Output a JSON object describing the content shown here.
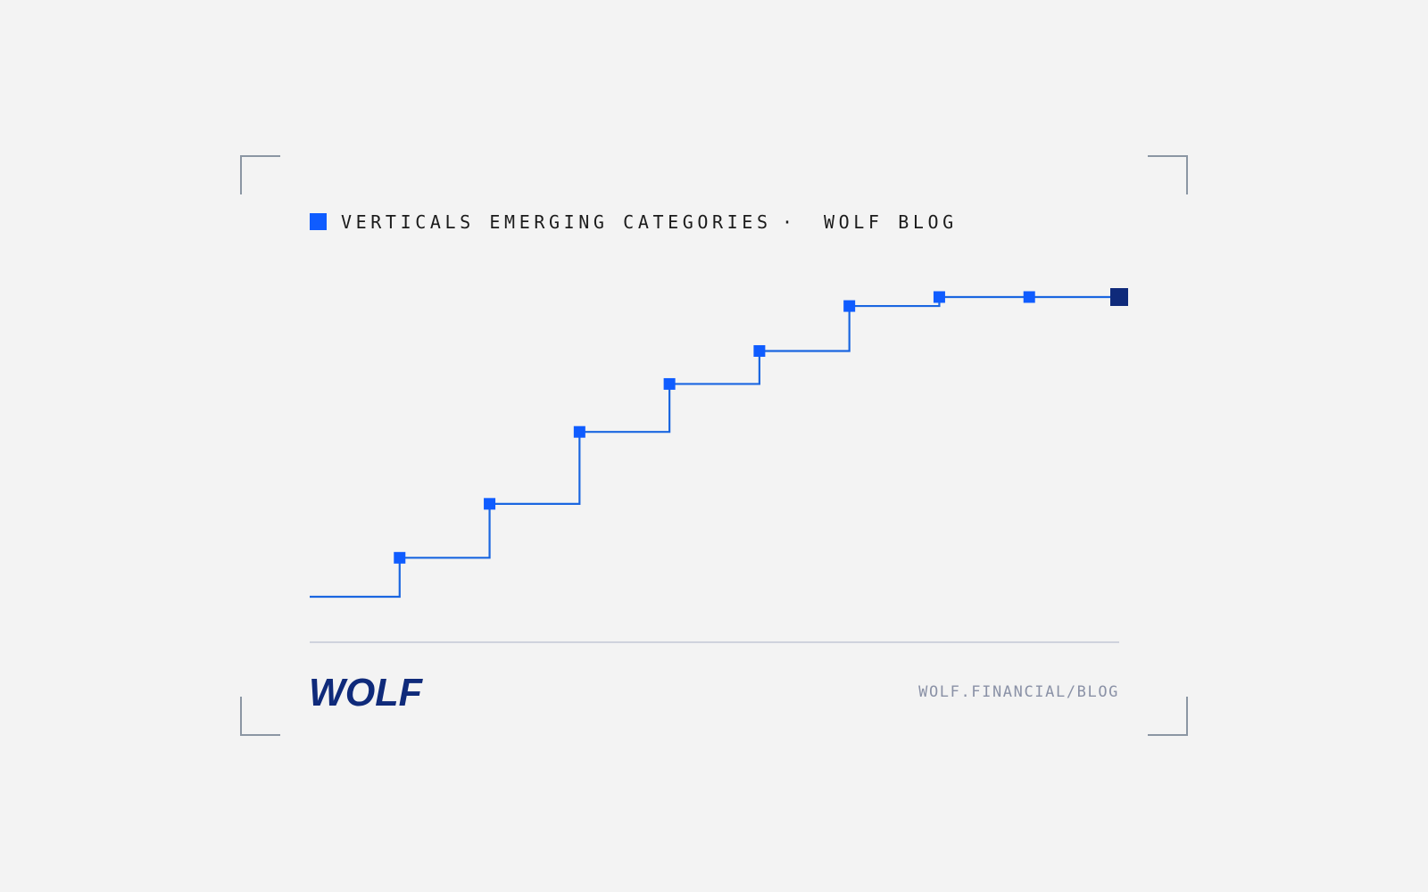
{
  "chart_data": {
    "type": "line",
    "step": "post",
    "title": "VERTICALS EMERGING CATEGORIES",
    "separator": "·",
    "subtitle": "WOLF BLOG",
    "categories": [
      null,
      null,
      null,
      null,
      null,
      null,
      null,
      null,
      null,
      null
    ],
    "values": [
      0,
      13,
      31,
      55,
      71,
      82,
      97,
      100,
      100,
      100
    ],
    "ylim": [
      0,
      100
    ],
    "color": "#1a66e0",
    "marker_color": "#0f5cff",
    "highlight_color": "#0f2a7a"
  },
  "footer": {
    "logo": "WOLF",
    "url": "WOLF.FINANCIAL/BLOG"
  }
}
